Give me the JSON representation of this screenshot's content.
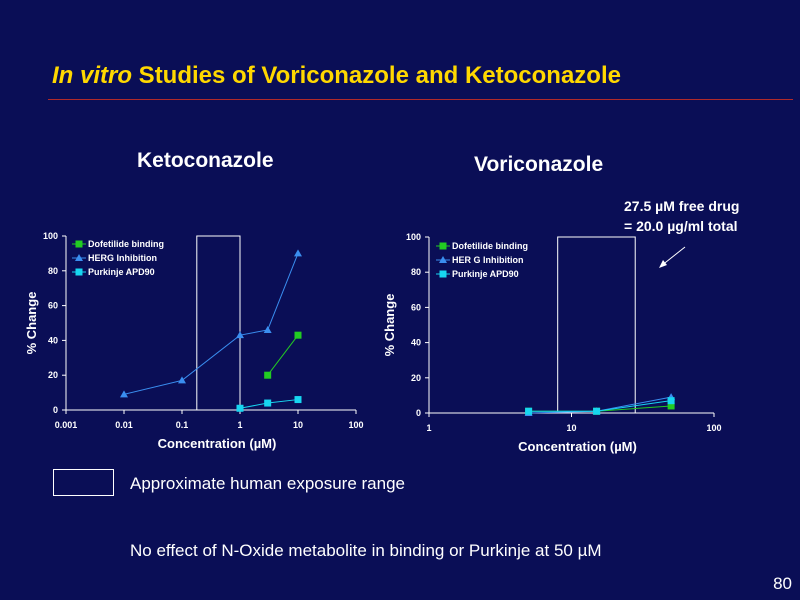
{
  "slide": {
    "title_italic": "In vitro",
    "title_rest": " Studies of Voriconazole and Ketoconazole",
    "annotation_line1": "27.5 µM free drug",
    "annotation_line2": "= 20.0 µg/ml total",
    "legend_label": "Approximate human exposure range",
    "footnote": "No effect of N-Oxide metabolite in binding or Purkinje at 50 µM",
    "page_number": "80"
  },
  "colors": {
    "background": "#0a0e56",
    "title": "#ffd800",
    "rule": "#b02a2a",
    "dofetilide": "#22cc22",
    "herg": "#3a8ef0",
    "purkinje": "#17d6f0"
  },
  "chart_data": [
    {
      "type": "line",
      "title": "Ketoconazole",
      "xlabel": "Concentration (µM)",
      "ylabel": "% Change",
      "x_scale": "log",
      "xlim": [
        0.001,
        100
      ],
      "x_ticks": [
        "0.001",
        "0.01",
        "0.1",
        "1",
        "10",
        "100"
      ],
      "ylim": [
        0,
        100
      ],
      "y_ticks": [
        "0",
        "20",
        "40",
        "60",
        "80",
        "100"
      ],
      "exposure_range": [
        0.18,
        1.0
      ],
      "legend_position": "top-left",
      "series": [
        {
          "name": "Dofetilide binding",
          "marker": "square",
          "color": "#22cc22",
          "x": [
            3,
            10
          ],
          "y": [
            20,
            43
          ]
        },
        {
          "name": "HERG Inhibition",
          "marker": "triangle",
          "color": "#3a8ef0",
          "x": [
            0.01,
            0.1,
            1,
            3,
            10
          ],
          "y": [
            9,
            17,
            43,
            46,
            90
          ]
        },
        {
          "name": "Purkinje APD90",
          "marker": "square",
          "color": "#17d6f0",
          "x": [
            1,
            3,
            10
          ],
          "y": [
            1,
            4,
            6
          ]
        }
      ]
    },
    {
      "type": "line",
      "title": "Voriconazole",
      "xlabel": "Concentration (µM)",
      "ylabel": "% Change",
      "x_scale": "log",
      "xlim": [
        1,
        100
      ],
      "x_ticks": [
        "1",
        "10",
        "100"
      ],
      "ylim": [
        0,
        100
      ],
      "y_ticks": [
        "0",
        "20",
        "40",
        "60",
        "80",
        "100"
      ],
      "exposure_range": [
        8,
        28
      ],
      "legend_position": "top-left",
      "series": [
        {
          "name": "Dofetilide binding",
          "marker": "square",
          "color": "#22cc22",
          "x": [
            5,
            15,
            50
          ],
          "y": [
            1,
            1,
            4
          ]
        },
        {
          "name": "HER G Inhibition",
          "marker": "triangle",
          "color": "#3a8ef0",
          "x": [
            5,
            15,
            50
          ],
          "y": [
            0,
            1,
            9
          ]
        },
        {
          "name": "Purkinje APD90",
          "marker": "square",
          "color": "#17d6f0",
          "x": [
            5,
            15,
            50
          ],
          "y": [
            1,
            1,
            7
          ]
        }
      ]
    }
  ]
}
